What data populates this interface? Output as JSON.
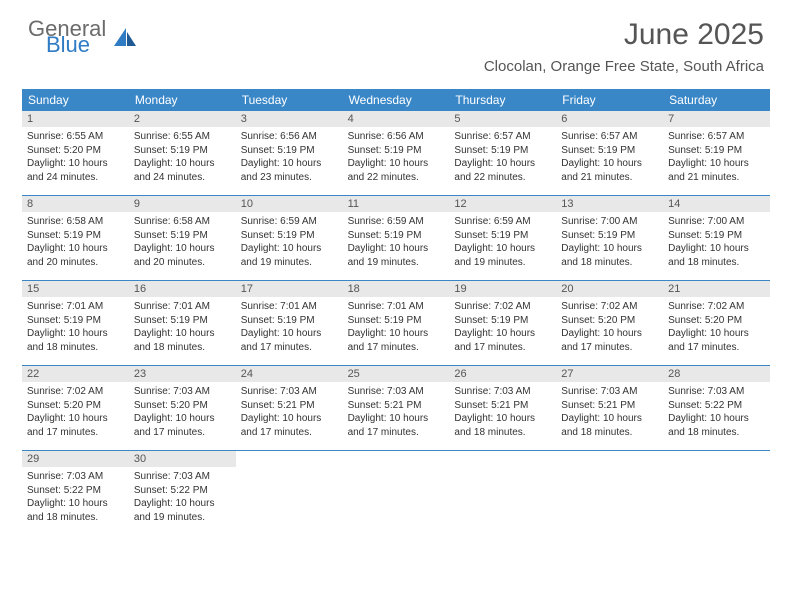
{
  "logo": {
    "general": "General",
    "blue": "Blue"
  },
  "title": "June 2025",
  "location": "Clocolan, Orange Free State, South Africa",
  "colors": {
    "header_bg": "#3a87c8",
    "header_text": "#ffffff",
    "day_header_bg": "#e8e8e8",
    "divider": "#3a87c8",
    "logo_gray": "#6b6b6b",
    "logo_blue": "#2f7bc4"
  },
  "weekdays": [
    "Sunday",
    "Monday",
    "Tuesday",
    "Wednesday",
    "Thursday",
    "Friday",
    "Saturday"
  ],
  "weeks": [
    [
      {
        "n": "1",
        "sr": "Sunrise: 6:55 AM",
        "ss": "Sunset: 5:20 PM",
        "d1": "Daylight: 10 hours",
        "d2": "and 24 minutes."
      },
      {
        "n": "2",
        "sr": "Sunrise: 6:55 AM",
        "ss": "Sunset: 5:19 PM",
        "d1": "Daylight: 10 hours",
        "d2": "and 24 minutes."
      },
      {
        "n": "3",
        "sr": "Sunrise: 6:56 AM",
        "ss": "Sunset: 5:19 PM",
        "d1": "Daylight: 10 hours",
        "d2": "and 23 minutes."
      },
      {
        "n": "4",
        "sr": "Sunrise: 6:56 AM",
        "ss": "Sunset: 5:19 PM",
        "d1": "Daylight: 10 hours",
        "d2": "and 22 minutes."
      },
      {
        "n": "5",
        "sr": "Sunrise: 6:57 AM",
        "ss": "Sunset: 5:19 PM",
        "d1": "Daylight: 10 hours",
        "d2": "and 22 minutes."
      },
      {
        "n": "6",
        "sr": "Sunrise: 6:57 AM",
        "ss": "Sunset: 5:19 PM",
        "d1": "Daylight: 10 hours",
        "d2": "and 21 minutes."
      },
      {
        "n": "7",
        "sr": "Sunrise: 6:57 AM",
        "ss": "Sunset: 5:19 PM",
        "d1": "Daylight: 10 hours",
        "d2": "and 21 minutes."
      }
    ],
    [
      {
        "n": "8",
        "sr": "Sunrise: 6:58 AM",
        "ss": "Sunset: 5:19 PM",
        "d1": "Daylight: 10 hours",
        "d2": "and 20 minutes."
      },
      {
        "n": "9",
        "sr": "Sunrise: 6:58 AM",
        "ss": "Sunset: 5:19 PM",
        "d1": "Daylight: 10 hours",
        "d2": "and 20 minutes."
      },
      {
        "n": "10",
        "sr": "Sunrise: 6:59 AM",
        "ss": "Sunset: 5:19 PM",
        "d1": "Daylight: 10 hours",
        "d2": "and 19 minutes."
      },
      {
        "n": "11",
        "sr": "Sunrise: 6:59 AM",
        "ss": "Sunset: 5:19 PM",
        "d1": "Daylight: 10 hours",
        "d2": "and 19 minutes."
      },
      {
        "n": "12",
        "sr": "Sunrise: 6:59 AM",
        "ss": "Sunset: 5:19 PM",
        "d1": "Daylight: 10 hours",
        "d2": "and 19 minutes."
      },
      {
        "n": "13",
        "sr": "Sunrise: 7:00 AM",
        "ss": "Sunset: 5:19 PM",
        "d1": "Daylight: 10 hours",
        "d2": "and 18 minutes."
      },
      {
        "n": "14",
        "sr": "Sunrise: 7:00 AM",
        "ss": "Sunset: 5:19 PM",
        "d1": "Daylight: 10 hours",
        "d2": "and 18 minutes."
      }
    ],
    [
      {
        "n": "15",
        "sr": "Sunrise: 7:01 AM",
        "ss": "Sunset: 5:19 PM",
        "d1": "Daylight: 10 hours",
        "d2": "and 18 minutes."
      },
      {
        "n": "16",
        "sr": "Sunrise: 7:01 AM",
        "ss": "Sunset: 5:19 PM",
        "d1": "Daylight: 10 hours",
        "d2": "and 18 minutes."
      },
      {
        "n": "17",
        "sr": "Sunrise: 7:01 AM",
        "ss": "Sunset: 5:19 PM",
        "d1": "Daylight: 10 hours",
        "d2": "and 17 minutes."
      },
      {
        "n": "18",
        "sr": "Sunrise: 7:01 AM",
        "ss": "Sunset: 5:19 PM",
        "d1": "Daylight: 10 hours",
        "d2": "and 17 minutes."
      },
      {
        "n": "19",
        "sr": "Sunrise: 7:02 AM",
        "ss": "Sunset: 5:19 PM",
        "d1": "Daylight: 10 hours",
        "d2": "and 17 minutes."
      },
      {
        "n": "20",
        "sr": "Sunrise: 7:02 AM",
        "ss": "Sunset: 5:20 PM",
        "d1": "Daylight: 10 hours",
        "d2": "and 17 minutes."
      },
      {
        "n": "21",
        "sr": "Sunrise: 7:02 AM",
        "ss": "Sunset: 5:20 PM",
        "d1": "Daylight: 10 hours",
        "d2": "and 17 minutes."
      }
    ],
    [
      {
        "n": "22",
        "sr": "Sunrise: 7:02 AM",
        "ss": "Sunset: 5:20 PM",
        "d1": "Daylight: 10 hours",
        "d2": "and 17 minutes."
      },
      {
        "n": "23",
        "sr": "Sunrise: 7:03 AM",
        "ss": "Sunset: 5:20 PM",
        "d1": "Daylight: 10 hours",
        "d2": "and 17 minutes."
      },
      {
        "n": "24",
        "sr": "Sunrise: 7:03 AM",
        "ss": "Sunset: 5:21 PM",
        "d1": "Daylight: 10 hours",
        "d2": "and 17 minutes."
      },
      {
        "n": "25",
        "sr": "Sunrise: 7:03 AM",
        "ss": "Sunset: 5:21 PM",
        "d1": "Daylight: 10 hours",
        "d2": "and 17 minutes."
      },
      {
        "n": "26",
        "sr": "Sunrise: 7:03 AM",
        "ss": "Sunset: 5:21 PM",
        "d1": "Daylight: 10 hours",
        "d2": "and 18 minutes."
      },
      {
        "n": "27",
        "sr": "Sunrise: 7:03 AM",
        "ss": "Sunset: 5:21 PM",
        "d1": "Daylight: 10 hours",
        "d2": "and 18 minutes."
      },
      {
        "n": "28",
        "sr": "Sunrise: 7:03 AM",
        "ss": "Sunset: 5:22 PM",
        "d1": "Daylight: 10 hours",
        "d2": "and 18 minutes."
      }
    ],
    [
      {
        "n": "29",
        "sr": "Sunrise: 7:03 AM",
        "ss": "Sunset: 5:22 PM",
        "d1": "Daylight: 10 hours",
        "d2": "and 18 minutes."
      },
      {
        "n": "30",
        "sr": "Sunrise: 7:03 AM",
        "ss": "Sunset: 5:22 PM",
        "d1": "Daylight: 10 hours",
        "d2": "and 19 minutes."
      },
      null,
      null,
      null,
      null,
      null
    ]
  ]
}
